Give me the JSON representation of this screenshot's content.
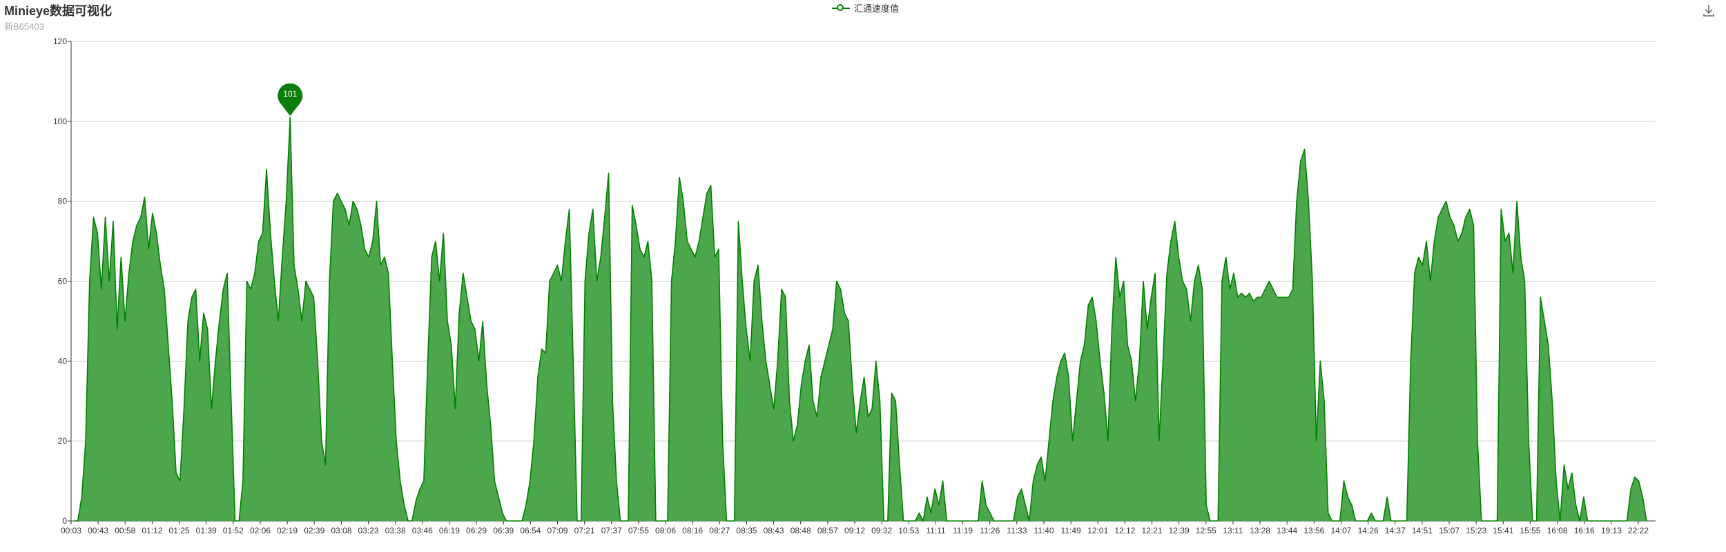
{
  "header": {
    "title": "Minieye数据可视化",
    "subtitle": "新B65403"
  },
  "legend": {
    "label": "汇通速度值",
    "color": "#008000"
  },
  "toolbar": {
    "download_icon": "download-icon"
  },
  "chart_data": {
    "type": "area",
    "title": "Minieye数据可视化",
    "subtitle": "新B65403",
    "xlabel": "",
    "ylabel": "",
    "ylim": [
      0,
      120
    ],
    "yticks": [
      0,
      20,
      40,
      60,
      80,
      100,
      120
    ],
    "grid": true,
    "legend_position": "top-center",
    "line_color": "#008000",
    "fill_color": "#4ca64c",
    "xticks": [
      "00:03",
      "00:43",
      "00:58",
      "01:12",
      "01:25",
      "01:39",
      "01:52",
      "02:06",
      "02:19",
      "02:39",
      "03:08",
      "03:23",
      "03:38",
      "03:46",
      "06:19",
      "06:29",
      "06:39",
      "06:54",
      "07:09",
      "07:21",
      "07:37",
      "07:55",
      "08:06",
      "08:16",
      "08:27",
      "08:35",
      "08:43",
      "08:48",
      "08:57",
      "09:12",
      "09:32",
      "10:53",
      "11:11",
      "11:19",
      "11:26",
      "11:33",
      "11:40",
      "11:49",
      "12:01",
      "12:12",
      "12:21",
      "12:39",
      "12:55",
      "13:11",
      "13:28",
      "13:44",
      "13:56",
      "14:07",
      "14:26",
      "14:37",
      "14:51",
      "15:07",
      "15:23",
      "15:41",
      "15:55",
      "16:08",
      "16:16",
      "19:13",
      "22:22"
    ],
    "series": [
      {
        "name": "汇通速度值",
        "values": [
          0,
          0,
          6,
          20,
          60,
          76,
          72,
          58,
          76,
          60,
          75,
          48,
          66,
          50,
          62,
          70,
          74,
          76,
          81,
          68,
          77,
          72,
          64,
          58,
          44,
          30,
          12,
          10,
          28,
          50,
          56,
          58,
          40,
          52,
          48,
          28,
          40,
          50,
          58,
          62,
          30,
          0,
          0,
          10,
          60,
          58,
          62,
          70,
          72,
          88,
          72,
          60,
          50,
          66,
          80,
          101,
          64,
          58,
          50,
          60,
          58,
          56,
          40,
          20,
          14,
          60,
          80,
          82,
          80,
          78,
          74,
          80,
          78,
          74,
          68,
          66,
          70,
          80,
          64,
          66,
          62,
          40,
          20,
          10,
          4,
          0,
          0,
          5,
          8,
          10,
          40,
          66,
          70,
          60,
          72,
          50,
          44,
          28,
          52,
          62,
          56,
          50,
          48,
          40,
          50,
          34,
          24,
          10,
          6,
          2,
          0,
          0,
          0,
          0,
          0,
          4,
          10,
          20,
          36,
          43,
          42,
          60,
          62,
          64,
          60,
          70,
          78,
          40,
          0,
          0,
          60,
          72,
          78,
          60,
          66,
          76,
          87,
          30,
          10,
          0,
          0,
          0,
          79,
          74,
          68,
          66,
          70,
          60,
          0,
          0,
          0,
          0,
          60,
          70,
          86,
          80,
          70,
          68,
          66,
          70,
          76,
          82,
          84,
          66,
          68,
          20,
          0,
          0,
          0,
          75,
          60,
          48,
          40,
          60,
          64,
          50,
          40,
          34,
          28,
          40,
          58,
          56,
          30,
          20,
          24,
          34,
          40,
          44,
          30,
          26,
          36,
          40,
          44,
          48,
          60,
          58,
          52,
          50,
          34,
          22,
          30,
          36,
          26,
          28,
          40,
          30,
          0,
          0,
          32,
          30,
          14,
          0,
          0,
          0,
          0,
          2,
          0,
          6,
          2,
          8,
          4,
          10,
          0,
          0,
          0,
          0,
          0,
          0,
          0,
          0,
          0,
          10,
          4,
          2,
          0,
          0,
          0,
          0,
          0,
          0,
          6,
          8,
          4,
          0,
          10,
          14,
          16,
          10,
          20,
          30,
          36,
          40,
          42,
          36,
          20,
          30,
          40,
          44,
          54,
          56,
          50,
          40,
          32,
          20,
          48,
          66,
          56,
          60,
          44,
          40,
          30,
          40,
          60,
          48,
          56,
          62,
          20,
          40,
          62,
          70,
          75,
          66,
          60,
          58,
          50,
          60,
          64,
          58,
          4,
          0,
          0,
          0,
          60,
          66,
          58,
          62,
          56,
          57,
          56,
          57,
          55,
          56,
          56,
          58,
          60,
          58,
          56,
          56,
          56,
          56,
          58,
          80,
          90,
          93,
          80,
          60,
          20,
          40,
          30,
          2,
          0,
          0,
          0,
          10,
          6,
          4,
          0,
          0,
          0,
          0,
          2,
          0,
          0,
          0,
          6,
          0,
          0,
          0,
          0,
          0,
          40,
          62,
          66,
          64,
          70,
          60,
          70,
          76,
          78,
          80,
          76,
          74,
          70,
          72,
          76,
          78,
          74,
          20,
          0,
          0,
          0,
          0,
          0,
          78,
          70,
          72,
          62,
          80,
          66,
          60,
          20,
          0,
          0,
          56,
          50,
          44,
          30,
          10,
          0,
          14,
          8,
          12,
          4,
          0,
          6,
          0,
          0,
          0,
          0,
          0,
          0,
          0,
          0,
          0,
          0,
          0,
          8,
          11,
          10,
          6,
          0
        ]
      }
    ],
    "annotations": [
      {
        "type": "max-marker",
        "value": 101,
        "text": "101"
      }
    ]
  }
}
